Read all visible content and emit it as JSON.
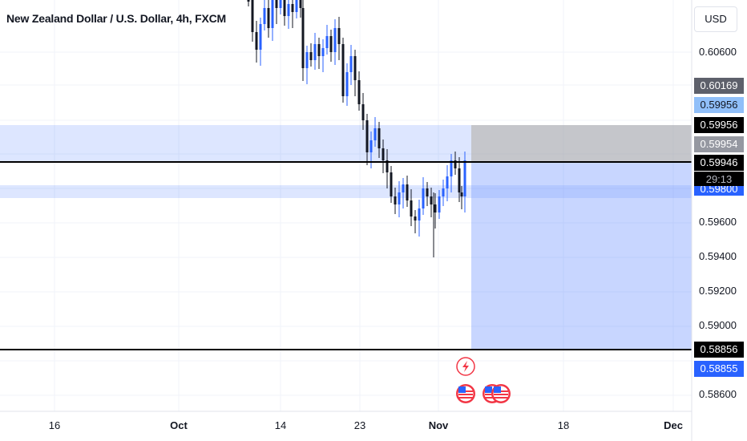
{
  "header": {
    "title": "New Zealand Dollar / U.S. Dollar, 4h, FXCM"
  },
  "currency_button": {
    "label": "USD"
  },
  "price_axis": {
    "ticks": [
      "0.60600",
      "0.59600",
      "0.59400",
      "0.59200",
      "0.59000",
      "0.58600"
    ],
    "tags": [
      {
        "text": "0.60169",
        "bg": "#5d606b",
        "fg": "#ffffff"
      },
      {
        "text": "0.59956",
        "bg": "#90bff9",
        "fg": "#131722"
      },
      {
        "text": "0.59956",
        "bg": "#000000",
        "fg": "#ffffff"
      },
      {
        "text": "0.59954",
        "bg": "#9598a1",
        "fg": "#ffffff"
      },
      {
        "text": "0.59946",
        "bg": "#000000",
        "fg": "#ffffff"
      },
      {
        "text": "29:13",
        "bg": "#000000",
        "fg": "#b2b5be"
      },
      {
        "text": "0.59800",
        "bg": "#2962ff",
        "fg": "#ffffff"
      },
      {
        "text": "0.58856",
        "bg": "#000000",
        "fg": "#ffffff"
      },
      {
        "text": "0.58855",
        "bg": "#2962ff",
        "fg": "#ffffff"
      }
    ]
  },
  "time_axis": {
    "labels": [
      "16",
      "Oct",
      "14",
      "23",
      "Nov",
      "18",
      "Dec"
    ]
  },
  "events": [
    {
      "name": "lightning-event-icon"
    },
    {
      "name": "us-flag-event-icon"
    },
    {
      "name": "us-flag-event-icon"
    },
    {
      "name": "us-flag-event-icon"
    }
  ],
  "colors": {
    "up": "#2962ff",
    "down": "#131722",
    "zone": "#2962ff",
    "grid": "#f0f3fa"
  }
}
